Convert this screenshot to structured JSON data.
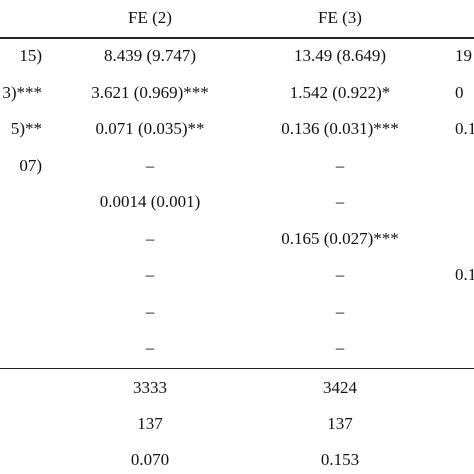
{
  "table": {
    "header": [
      null,
      "FE (2)",
      "FE (3)",
      null
    ],
    "rows": [
      [
        "15)",
        "8.439 (9.747)",
        "13.49 (8.649)",
        "19"
      ],
      [
        "3)***",
        "3.621 (0.969)***",
        "1.542 (0.922)*",
        "0"
      ],
      [
        "5)**",
        "0.071 (0.035)**",
        "0.136 (0.031)***",
        "0.1"
      ],
      [
        "07)",
        "–",
        "–",
        null
      ],
      [
        null,
        "0.0014 (0.001)",
        "–",
        null
      ],
      [
        null,
        "–",
        "0.165 (0.027)***",
        null
      ],
      [
        null,
        "–",
        "–",
        "0.1"
      ],
      [
        null,
        "–",
        "–",
        null
      ],
      [
        null,
        "–",
        "–",
        null
      ]
    ],
    "footer_rows": [
      [
        null,
        "3333",
        "3424",
        null
      ],
      [
        null,
        "137",
        "137",
        null
      ],
      [
        null,
        "0.070",
        "0.153",
        null
      ]
    ]
  }
}
